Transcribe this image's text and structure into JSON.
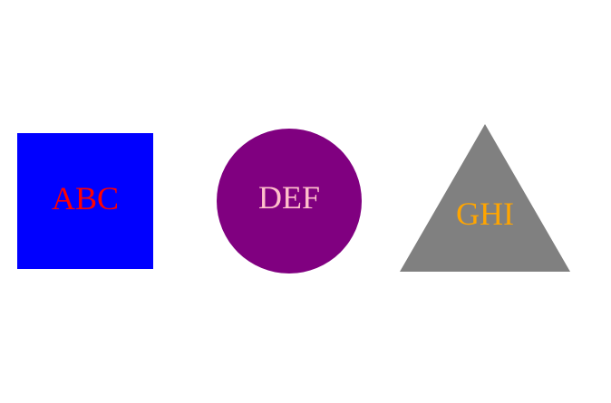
{
  "shapes": [
    {
      "kind": "square",
      "label": "ABC",
      "fill": "#0000ff",
      "text_color": "#ff0000"
    },
    {
      "kind": "circle",
      "label": "DEF",
      "fill": "#800080",
      "text_color": "#ffc0cb"
    },
    {
      "kind": "triangle",
      "label": "GHI",
      "fill": "#808080",
      "text_color": "#ffa500"
    }
  ]
}
